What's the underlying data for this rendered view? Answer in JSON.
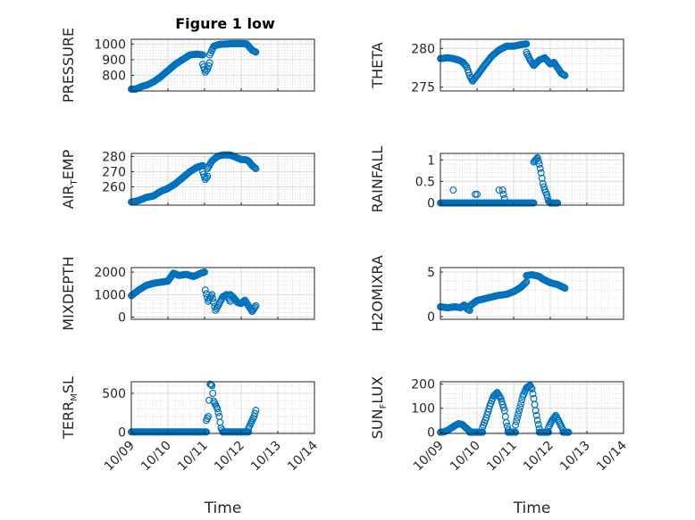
{
  "figure": {
    "title": "Figure 1 low"
  },
  "chart_data": [
    {
      "type": "scatter",
      "ylabel": "PRESSURE",
      "ylim": [
        700,
        1030
      ],
      "yticks": [
        800,
        900,
        1000
      ],
      "ytick_labels": [
        "800",
        "900",
        "1000"
      ],
      "title": "Figure 1 low",
      "x_ticks_shown": false,
      "segments": [
        {
          "x": [
            0,
            0.12,
            0.28,
            0.45,
            0.62,
            0.8,
            1.0,
            1.2,
            1.4,
            1.6,
            1.8,
            1.95
          ],
          "y": [
            712,
            712,
            728,
            740,
            760,
            790,
            830,
            870,
            900,
            930,
            935,
            930
          ]
        },
        {
          "x": [
            1.95,
            2.02,
            2.08,
            2.14
          ],
          "y": [
            870,
            820,
            840,
            880
          ]
        },
        {
          "x": [
            2.14,
            2.25,
            2.4,
            2.6,
            2.8,
            3.0,
            3.15,
            3.3,
            3.4
          ],
          "y": [
            930,
            985,
            997,
            1000,
            1002,
            1002,
            1000,
            960,
            948
          ]
        }
      ],
      "color": "#0072bd"
    },
    {
      "type": "scatter",
      "ylabel": "THETA",
      "ylim": [
        274.5,
        281.2
      ],
      "yticks": [
        275,
        280
      ],
      "ytick_labels": [
        "275",
        "280"
      ],
      "x_ticks_shown": false,
      "segments": [
        {
          "x": [
            0,
            0.2,
            0.35,
            0.5,
            0.62,
            0.72,
            0.8,
            0.88
          ],
          "y": [
            278.7,
            278.8,
            278.7,
            278.5,
            278.2,
            277.6,
            276.5,
            275.8
          ]
        },
        {
          "x": [
            0.88,
            1.0,
            1.2,
            1.4,
            1.6,
            1.8,
            2.0,
            2.2,
            2.35
          ],
          "y": [
            275.8,
            276.5,
            277.8,
            279.0,
            279.8,
            280.3,
            280.3,
            280.5,
            280.6
          ]
        },
        {
          "x": [
            2.35,
            2.45,
            2.55,
            2.7,
            2.85,
            3.0,
            3.1,
            3.2,
            3.3,
            3.4
          ],
          "y": [
            279.5,
            278.5,
            277.8,
            278.5,
            278.8,
            278.0,
            278.2,
            277.5,
            276.8,
            276.5
          ]
        }
      ],
      "color": "#0072bd"
    },
    {
      "type": "scatter",
      "ylabel": "AIR_TEMP",
      "ylim": [
        248,
        282
      ],
      "yticks": [
        260,
        270,
        280
      ],
      "ytick_labels": [
        "260",
        "270",
        "280"
      ],
      "x_ticks_shown": false,
      "segments": [
        {
          "x": [
            0,
            0.2,
            0.4,
            0.6,
            0.8,
            1.0,
            1.2,
            1.4,
            1.6,
            1.8,
            1.95
          ],
          "y": [
            250,
            251,
            253,
            254,
            257,
            259,
            262,
            266,
            270,
            273,
            274
          ]
        },
        {
          "x": [
            1.95,
            2.02,
            2.08
          ],
          "y": [
            270,
            265,
            267
          ]
        },
        {
          "x": [
            2.08,
            2.2,
            2.35,
            2.5,
            2.7,
            2.9,
            3.0,
            3.1,
            3.2,
            3.3,
            3.4
          ],
          "y": [
            272,
            277,
            280,
            281,
            281,
            279,
            278,
            278,
            277,
            274,
            272
          ]
        }
      ],
      "color": "#0072bd"
    },
    {
      "type": "scatter",
      "ylabel": "RAINFALL",
      "ylim": [
        -0.05,
        1.15
      ],
      "yticks": [
        0,
        0.5,
        1
      ],
      "ytick_labels": [
        "0",
        "0.5",
        "1"
      ],
      "x_ticks_shown": false,
      "baseline": {
        "from": 0,
        "to": 2.55,
        "value": 0
      },
      "points": [
        {
          "x": 0.35,
          "y": 0.3
        },
        {
          "x": 0.95,
          "y": 0.2
        },
        {
          "x": 1.0,
          "y": 0.2
        },
        {
          "x": 1.6,
          "y": 0.3
        },
        {
          "x": 1.7,
          "y": 0.3
        },
        {
          "x": 1.72,
          "y": 0.2
        },
        {
          "x": 1.75,
          "y": 0.1
        }
      ],
      "segments": [
        {
          "x": [
            2.55,
            2.6,
            2.65,
            2.7,
            2.75,
            2.8,
            2.85,
            2.9,
            2.95,
            3.0
          ],
          "y": [
            0.95,
            1.0,
            1.05,
            0.9,
            0.7,
            0.45,
            0.3,
            0.2,
            0.05,
            0.0
          ]
        },
        {
          "x": [
            3.0,
            3.2
          ],
          "y": [
            0,
            0
          ]
        }
      ],
      "color": "#0072bd"
    },
    {
      "type": "scatter",
      "ylabel": "MIXDEPTH",
      "ylim": [
        -100,
        2200
      ],
      "yticks": [
        0,
        1000,
        2000
      ],
      "ytick_labels": [
        "0",
        "1000",
        "2000"
      ],
      "x_ticks_shown": false,
      "segments": [
        {
          "x": [
            0,
            0.2,
            0.4,
            0.6,
            0.8,
            1.0,
            1.15,
            1.3,
            1.5,
            1.7,
            1.9,
            2.0
          ],
          "y": [
            950,
            1200,
            1400,
            1500,
            1550,
            1600,
            1950,
            1850,
            1900,
            1800,
            1950,
            2000
          ]
        },
        {
          "x": [
            2.02,
            2.1,
            2.2,
            2.3,
            2.4,
            2.5,
            2.6,
            2.7
          ],
          "y": [
            1200,
            700,
            1000,
            300,
            600,
            900,
            1000,
            700
          ]
        },
        {
          "x": [
            2.7,
            2.8,
            2.9,
            3.0,
            3.1,
            3.2,
            3.3,
            3.4
          ],
          "y": [
            1000,
            850,
            650,
            600,
            750,
            500,
            250,
            500
          ]
        }
      ],
      "color": "#0072bd"
    },
    {
      "type": "scatter",
      "ylabel": "H2OMIXRA",
      "ylim": [
        -0.3,
        5.5
      ],
      "yticks": [
        0,
        5
      ],
      "ytick_labels": [
        "0",
        "5"
      ],
      "x_ticks_shown": false,
      "segments": [
        {
          "x": [
            0,
            0.2,
            0.4,
            0.55,
            0.65,
            0.72,
            0.8
          ],
          "y": [
            1.1,
            1.0,
            1.1,
            1.0,
            1.3,
            0.9,
            0.7
          ]
        },
        {
          "x": [
            0.8,
            1.0,
            1.2,
            1.4,
            1.6,
            1.8,
            2.0,
            2.2,
            2.35
          ],
          "y": [
            1.2,
            1.8,
            2.0,
            2.2,
            2.4,
            2.5,
            2.8,
            3.3,
            3.9
          ]
        },
        {
          "x": [
            2.35,
            2.5,
            2.6,
            2.7,
            2.8,
            2.9,
            3.0,
            3.1,
            3.2,
            3.3,
            3.4
          ],
          "y": [
            4.6,
            4.7,
            4.6,
            4.5,
            4.2,
            4.0,
            3.8,
            3.7,
            3.6,
            3.4,
            3.2
          ]
        }
      ],
      "color": "#0072bd"
    },
    {
      "type": "scatter",
      "ylabel": "TERR_MSL",
      "ylim": [
        -20,
        650
      ],
      "yticks": [
        0,
        500
      ],
      "ytick_labels": [
        "0",
        "500"
      ],
      "x_ticks": [
        0,
        1,
        2,
        3,
        4,
        5
      ],
      "x_tick_labels": [
        "10/09",
        "10/10",
        "10/11",
        "10/12",
        "10/13",
        "10/14"
      ],
      "xlabel": "Time",
      "baseline": {
        "from": 0,
        "to": 2.05,
        "value": 0
      },
      "segments": [
        {
          "x": [
            2.05,
            2.1,
            2.15,
            2.2,
            2.25,
            2.3,
            2.35,
            2.4,
            2.45,
            2.5
          ],
          "y": [
            150,
            200,
            620,
            600,
            400,
            350,
            300,
            200,
            50,
            0
          ]
        },
        {
          "x": [
            2.5,
            3.2
          ],
          "y": [
            0,
            0
          ]
        },
        {
          "x": [
            3.2,
            3.25,
            3.3,
            3.35,
            3.4
          ],
          "y": [
            50,
            100,
            150,
            200,
            280
          ]
        }
      ],
      "color": "#0072bd"
    },
    {
      "type": "scatter",
      "ylabel": "SUN_FLUX",
      "ylim": [
        -5,
        210
      ],
      "yticks": [
        0,
        100,
        200
      ],
      "ytick_labels": [
        "0",
        "100",
        "200"
      ],
      "x_ticks": [
        0,
        1,
        2,
        3,
        4,
        5
      ],
      "x_tick_labels": [
        "10/09",
        "10/10",
        "10/11",
        "10/12",
        "10/13",
        "10/14"
      ],
      "xlabel": "Time",
      "segments": [
        {
          "x": [
            0,
            0.1,
            0.2,
            0.3,
            0.4,
            0.5,
            0.6,
            0.7,
            0.8
          ],
          "y": [
            0,
            2,
            8,
            18,
            28,
            36,
            32,
            18,
            5
          ]
        },
        {
          "x": [
            0.8,
            1.0,
            1.15
          ],
          "y": [
            0,
            0,
            0
          ]
        },
        {
          "x": [
            1.15,
            1.25,
            1.35,
            1.45,
            1.55,
            1.65,
            1.75,
            1.8,
            1.85
          ],
          "y": [
            20,
            60,
            110,
            150,
            165,
            140,
            90,
            40,
            10
          ]
        },
        {
          "x": [
            1.85,
            2.05
          ],
          "y": [
            0,
            0
          ]
        },
        {
          "x": [
            2.05,
            2.15,
            2.25,
            2.35,
            2.45,
            2.5,
            2.55,
            2.6,
            2.65,
            2.7
          ],
          "y": [
            30,
            90,
            150,
            185,
            195,
            180,
            140,
            90,
            50,
            15
          ]
        },
        {
          "x": [
            2.7,
            2.95
          ],
          "y": [
            0,
            0
          ]
        },
        {
          "x": [
            2.95,
            3.05,
            3.15,
            3.25,
            3.35
          ],
          "y": [
            20,
            50,
            70,
            40,
            10
          ]
        },
        {
          "x": [
            3.35,
            3.5
          ],
          "y": [
            0,
            0
          ]
        }
      ],
      "color": "#0072bd"
    }
  ]
}
